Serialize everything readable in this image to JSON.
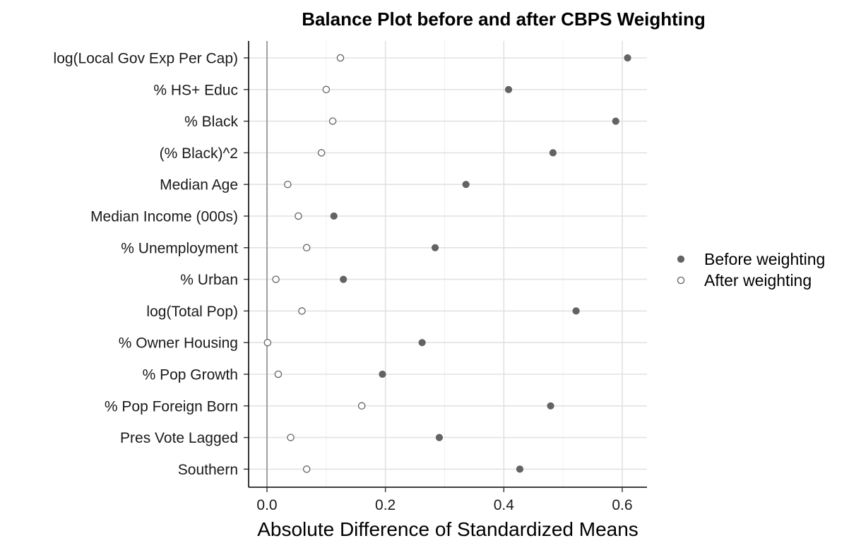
{
  "chart_data": {
    "type": "scatter",
    "title": "Balance Plot before and after CBPS Weighting",
    "xlabel": "Absolute Difference of Standardized Means",
    "ylabel": "",
    "xlim": [
      -0.08,
      0.64
    ],
    "xticks": [
      0.0,
      0.2,
      0.4,
      0.6
    ],
    "xtick_labels": [
      "0.0",
      "0.2",
      "0.4",
      "0.6"
    ],
    "reference_line_x": 0,
    "grid": true,
    "legend_position": "right",
    "categories": [
      "log(Local Gov Exp Per Cap)",
      "% HS+ Educ",
      "% Black",
      "(% Black)^2",
      "Median Age",
      "Median Income (000s)",
      "% Unemployment",
      "% Urban",
      "log(Total Pop)",
      "% Owner Housing",
      "% Pop Growth",
      "% Pop Foreign Born",
      "Pres Vote Lagged",
      "Southern"
    ],
    "series": [
      {
        "name": "Before weighting",
        "marker": "filled",
        "color": "#636363",
        "values": [
          0.609,
          0.408,
          0.589,
          0.483,
          0.336,
          0.113,
          0.284,
          0.129,
          0.522,
          0.262,
          0.195,
          0.479,
          0.291,
          0.427
        ]
      },
      {
        "name": "After weighting",
        "marker": "open",
        "color": "#636363",
        "values": [
          0.124,
          0.1,
          0.111,
          0.092,
          0.035,
          0.053,
          0.067,
          0.015,
          0.059,
          0.001,
          0.019,
          0.16,
          0.04,
          0.067
        ]
      }
    ]
  }
}
